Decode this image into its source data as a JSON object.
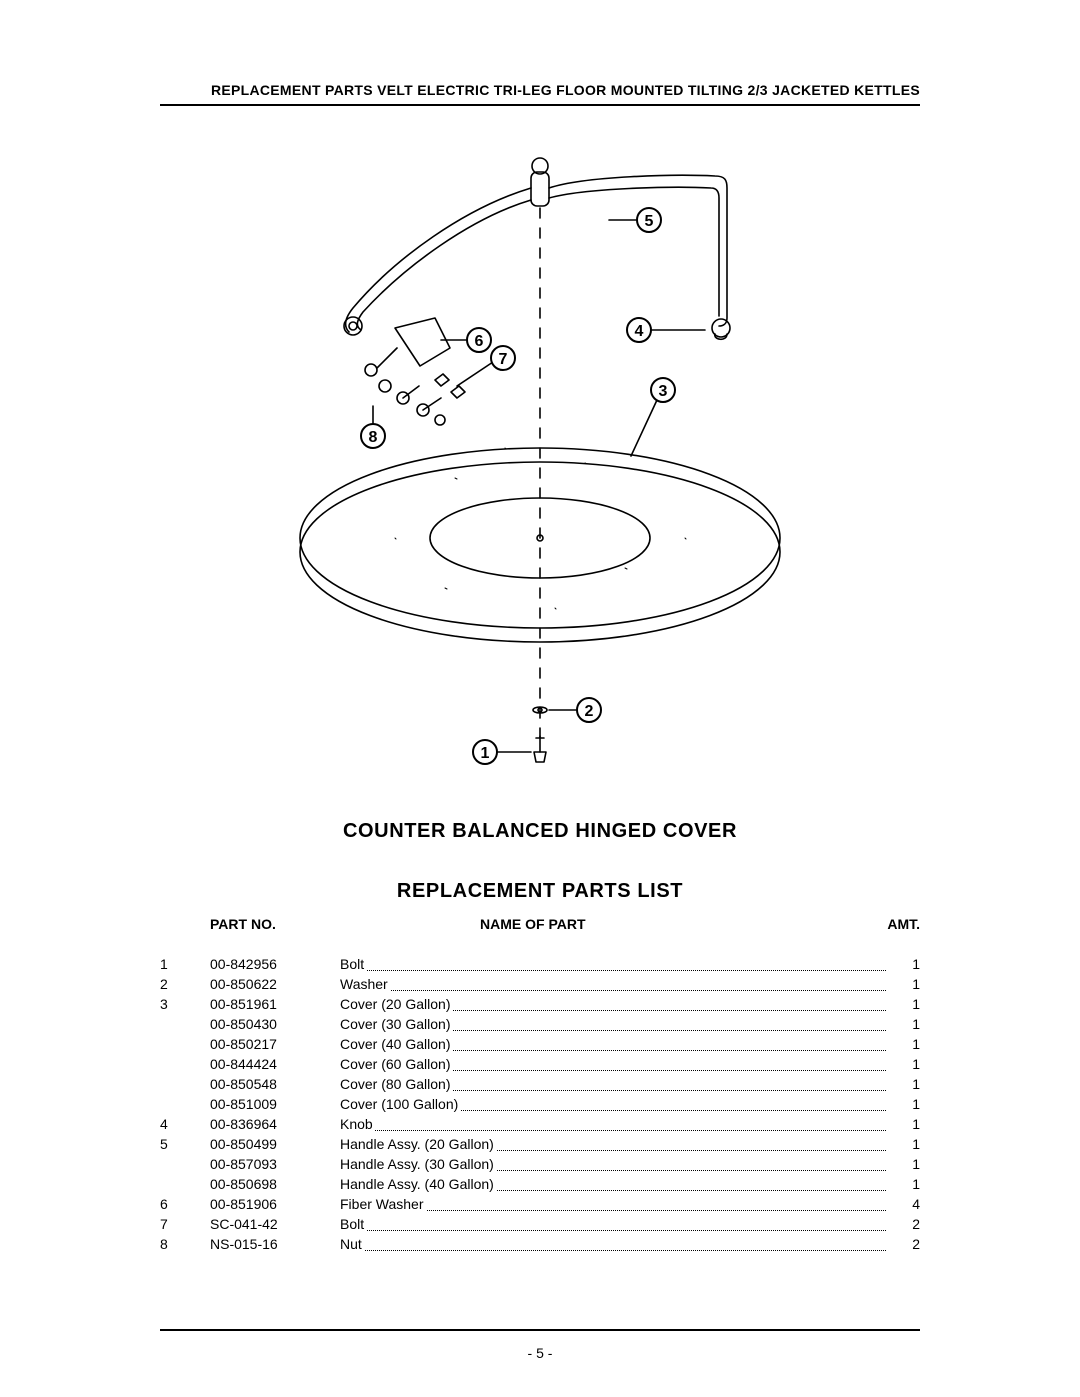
{
  "header": {
    "title": "REPLACEMENT PARTS VELT ELECTRIC TRI-LEG FLOOR MOUNTED TILTING 2/3 JACKETED KETTLES"
  },
  "titles": {
    "main": "COUNTER BALANCED HINGED COVER",
    "sub": "REPLACEMENT PARTS LIST"
  },
  "columns": {
    "part": "PART NO.",
    "name": "NAME OF PART",
    "amt": "AMT."
  },
  "diagram": {
    "callouts": [
      "1",
      "2",
      "3",
      "4",
      "5",
      "6",
      "7",
      "8"
    ],
    "stroke": "#000000",
    "stroke_width": 1.6,
    "font_family": "Arial",
    "callout_fontsize": 16
  },
  "rows": [
    {
      "idx": "1",
      "partno": "00-842956",
      "name": "Bolt",
      "amt": "1"
    },
    {
      "idx": "2",
      "partno": "00-850622",
      "name": "Washer",
      "amt": "1"
    },
    {
      "idx": "3",
      "partno": "00-851961",
      "name": "Cover (20 Gallon)",
      "amt": "1"
    },
    {
      "idx": "",
      "partno": "00-850430",
      "name": "Cover (30 Gallon)",
      "amt": "1"
    },
    {
      "idx": "",
      "partno": "00-850217",
      "name": "Cover (40 Gallon)",
      "amt": "1"
    },
    {
      "idx": "",
      "partno": "00-844424",
      "name": "Cover (60 Gallon)",
      "amt": "1"
    },
    {
      "idx": "",
      "partno": "00-850548",
      "name": "Cover (80 Gallon)",
      "amt": "1"
    },
    {
      "idx": "",
      "partno": "00-851009",
      "name": "Cover (100 Gallon)",
      "amt": "1"
    },
    {
      "idx": "4",
      "partno": "00-836964",
      "name": "Knob",
      "amt": "1"
    },
    {
      "idx": "5",
      "partno": "00-850499",
      "name": "Handle Assy. (20 Gallon)",
      "amt": "1"
    },
    {
      "idx": "",
      "partno": "00-857093",
      "name": "Handle Assy. (30 Gallon)",
      "amt": "1"
    },
    {
      "idx": "",
      "partno": "00-850698",
      "name": "Handle Assy. (40 Gallon)",
      "amt": "1"
    },
    {
      "idx": "6",
      "partno": "00-851906",
      "name": "Fiber Washer",
      "amt": "4"
    },
    {
      "idx": "7",
      "partno": "SC-041-42",
      "name": "Bolt",
      "amt": "2"
    },
    {
      "idx": "8",
      "partno": "NS-015-16",
      "name": "Nut",
      "amt": "2"
    }
  ],
  "page_number": "- 5 -"
}
